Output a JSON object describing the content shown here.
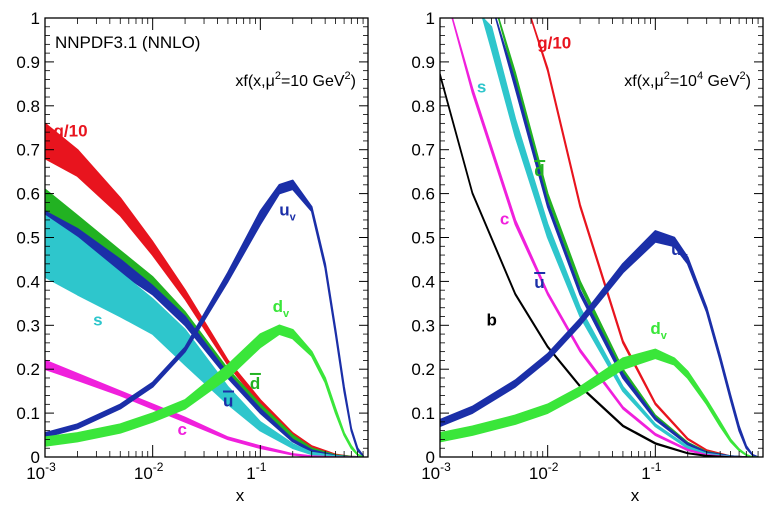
{
  "chart_data": [
    {
      "type": "line",
      "title": "NNPDF3.1 (NNLO)",
      "annotation": {
        "prefix": "xf(x,μ",
        "sup1": "2",
        "mid": "=10 GeV",
        "sup2": "2",
        "suffix": ")"
      },
      "xlabel": "x",
      "ylabel": "",
      "xscale": "log",
      "xlim": [
        0.001,
        1
      ],
      "ylim": [
        0,
        1
      ],
      "xticks": [
        "10",
        "10",
        "1"
      ],
      "xtick_exps": [
        "-3",
        "-2",
        "-1"
      ],
      "yticks": [
        "0",
        "0.1",
        "0.2",
        "0.3",
        "0.4",
        "0.5",
        "0.6",
        "0.7",
        "0.8",
        "0.9",
        "1"
      ],
      "series": [
        {
          "name": "g/10",
          "sub": "",
          "bar": false,
          "color": "#e8141e",
          "x": [
            0.001,
            0.002,
            0.005,
            0.01,
            0.02,
            0.05,
            0.1,
            0.2,
            0.3,
            0.5,
            0.7,
            0.9
          ],
          "lo": [
            0.68,
            0.64,
            0.55,
            0.46,
            0.36,
            0.21,
            0.12,
            0.05,
            0.02,
            0.004,
            0.001,
            0.0
          ],
          "hi": [
            0.76,
            0.7,
            0.59,
            0.49,
            0.38,
            0.22,
            0.13,
            0.055,
            0.025,
            0.006,
            0.001,
            0.0
          ],
          "label": {
            "x": 0.0012,
            "y": 0.73
          }
        },
        {
          "name": "d",
          "sub": "",
          "bar": true,
          "color": "#22b222",
          "x": [
            0.001,
            0.002,
            0.005,
            0.01,
            0.02,
            0.05,
            0.1,
            0.2,
            0.3,
            0.5,
            0.7,
            0.9
          ],
          "lo": [
            0.55,
            0.5,
            0.44,
            0.38,
            0.31,
            0.19,
            0.11,
            0.04,
            0.015,
            0.003,
            0.001,
            0.0
          ],
          "hi": [
            0.61,
            0.55,
            0.47,
            0.41,
            0.33,
            0.2,
            0.12,
            0.05,
            0.02,
            0.004,
            0.001,
            0.0
          ],
          "label": {
            "x": 0.08,
            "y": 0.155
          }
        },
        {
          "name": "u",
          "sub": "",
          "bar": true,
          "color": "#1b2fa8",
          "x": [
            0.001,
            0.002,
            0.005,
            0.01,
            0.02,
            0.05,
            0.1,
            0.2,
            0.3,
            0.5,
            0.7,
            0.9
          ],
          "lo": [
            0.51,
            0.48,
            0.42,
            0.37,
            0.3,
            0.18,
            0.1,
            0.035,
            0.012,
            0.002,
            0.0,
            0.0
          ],
          "hi": [
            0.56,
            0.52,
            0.45,
            0.39,
            0.32,
            0.19,
            0.11,
            0.04,
            0.016,
            0.003,
            0.0,
            0.0
          ],
          "label": {
            "x": 0.045,
            "y": 0.115
          }
        },
        {
          "name": "s",
          "sub": "",
          "bar": false,
          "color": "#2ec6cc",
          "x": [
            0.001,
            0.002,
            0.005,
            0.01,
            0.02,
            0.05,
            0.1,
            0.2,
            0.3,
            0.5,
            0.7,
            0.9
          ],
          "lo": [
            0.41,
            0.37,
            0.32,
            0.28,
            0.21,
            0.12,
            0.06,
            0.02,
            0.006,
            0.001,
            0.0,
            0.0
          ],
          "hi": [
            0.55,
            0.5,
            0.42,
            0.36,
            0.29,
            0.16,
            0.08,
            0.03,
            0.01,
            0.002,
            0.0,
            0.0
          ],
          "label": {
            "x": 0.0028,
            "y": 0.3
          }
        },
        {
          "name": "c",
          "sub": "",
          "bar": false,
          "color": "#f020dc",
          "x": [
            0.001,
            0.002,
            0.005,
            0.01,
            0.02,
            0.05,
            0.1,
            0.2,
            0.3,
            0.5,
            0.7,
            0.9
          ],
          "lo": [
            0.2,
            0.175,
            0.14,
            0.11,
            0.08,
            0.04,
            0.02,
            0.005,
            0.001,
            0.0,
            0.0,
            0.0
          ],
          "hi": [
            0.22,
            0.19,
            0.15,
            0.12,
            0.09,
            0.045,
            0.025,
            0.007,
            0.002,
            0.0,
            0.0,
            0.0
          ],
          "label": {
            "x": 0.017,
            "y": 0.05
          }
        },
        {
          "name": "u",
          "sub": "v",
          "bar": false,
          "color": "#1b2fa8",
          "x": [
            0.001,
            0.002,
            0.005,
            0.01,
            0.02,
            0.05,
            0.1,
            0.15,
            0.2,
            0.3,
            0.4,
            0.5,
            0.6,
            0.7,
            0.8,
            0.9
          ],
          "lo": [
            0.045,
            0.065,
            0.11,
            0.16,
            0.24,
            0.4,
            0.53,
            0.6,
            0.61,
            0.56,
            0.43,
            0.28,
            0.15,
            0.06,
            0.015,
            0.002
          ],
          "hi": [
            0.055,
            0.075,
            0.12,
            0.17,
            0.25,
            0.42,
            0.56,
            0.62,
            0.63,
            0.57,
            0.44,
            0.29,
            0.16,
            0.065,
            0.02,
            0.003
          ],
          "label": {
            "x": 0.15,
            "y": 0.55
          }
        },
        {
          "name": "d",
          "sub": "v",
          "bar": false,
          "color": "#3ae63a",
          "x": [
            0.001,
            0.002,
            0.005,
            0.01,
            0.02,
            0.05,
            0.1,
            0.15,
            0.2,
            0.3,
            0.4,
            0.5,
            0.6,
            0.7,
            0.8,
            0.9
          ],
          "lo": [
            0.025,
            0.035,
            0.055,
            0.08,
            0.11,
            0.18,
            0.25,
            0.28,
            0.27,
            0.23,
            0.17,
            0.1,
            0.05,
            0.02,
            0.005,
            0.0
          ],
          "hi": [
            0.045,
            0.055,
            0.075,
            0.1,
            0.13,
            0.21,
            0.28,
            0.3,
            0.29,
            0.24,
            0.18,
            0.11,
            0.055,
            0.025,
            0.006,
            0.0
          ],
          "label": {
            "x": 0.13,
            "y": 0.33
          }
        }
      ]
    },
    {
      "type": "line",
      "title": "",
      "annotation": {
        "prefix": "xf(x,μ",
        "sup1": "2",
        "mid": "=10",
        "sup2": "4",
        "suffix": " GeV",
        "sup3": "2",
        "suffix2": ")"
      },
      "xlabel": "x",
      "ylabel": "",
      "xscale": "log",
      "xlim": [
        0.001,
        1
      ],
      "ylim": [
        0,
        1
      ],
      "xticks": [
        "10",
        "10",
        "1"
      ],
      "xtick_exps": [
        "-3",
        "-2",
        "-1"
      ],
      "yticks": [
        "0",
        "0.1",
        "0.2",
        "0.3",
        "0.4",
        "0.5",
        "0.6",
        "0.7",
        "0.8",
        "0.9",
        "1"
      ],
      "series": [
        {
          "name": "g/10",
          "sub": "",
          "bar": false,
          "color": "#e8141e",
          "x": [
            0.007,
            0.01,
            0.02,
            0.05,
            0.1,
            0.2,
            0.3,
            0.5,
            0.7,
            0.9
          ],
          "lo": [
            1.0,
            0.88,
            0.57,
            0.26,
            0.12,
            0.04,
            0.015,
            0.002,
            0.0,
            0.0
          ],
          "hi": [
            1.0,
            0.885,
            0.575,
            0.265,
            0.123,
            0.042,
            0.016,
            0.002,
            0.0,
            0.0
          ],
          "label": {
            "x": 0.008,
            "y": 0.93
          }
        },
        {
          "name": "d",
          "sub": "",
          "bar": true,
          "color": "#22b222",
          "x": [
            0.0035,
            0.005,
            0.01,
            0.02,
            0.05,
            0.1,
            0.2,
            0.3,
            0.5,
            0.7,
            0.9
          ],
          "lo": [
            1.0,
            0.86,
            0.59,
            0.39,
            0.19,
            0.09,
            0.03,
            0.01,
            0.002,
            0.0,
            0.0
          ],
          "hi": [
            1.0,
            0.875,
            0.6,
            0.4,
            0.2,
            0.095,
            0.033,
            0.012,
            0.002,
            0.0,
            0.0
          ],
          "label": {
            "x": 0.0075,
            "y": 0.64
          }
        },
        {
          "name": "u",
          "sub": "",
          "bar": true,
          "color": "#1b2fa8",
          "x": [
            0.0033,
            0.005,
            0.01,
            0.02,
            0.05,
            0.1,
            0.2,
            0.3,
            0.5,
            0.7,
            0.9
          ],
          "lo": [
            1.0,
            0.84,
            0.57,
            0.37,
            0.18,
            0.085,
            0.028,
            0.009,
            0.001,
            0.0,
            0.0
          ],
          "hi": [
            1.0,
            0.855,
            0.58,
            0.38,
            0.19,
            0.09,
            0.031,
            0.011,
            0.002,
            0.0,
            0.0
          ],
          "label": {
            "x": 0.0075,
            "y": 0.385
          }
        },
        {
          "name": "s",
          "sub": "",
          "bar": false,
          "color": "#2ec6cc",
          "x": [
            0.0025,
            0.003,
            0.005,
            0.01,
            0.02,
            0.05,
            0.1,
            0.2,
            0.3,
            0.5,
            0.7,
            0.9
          ],
          "lo": [
            1.0,
            0.93,
            0.73,
            0.5,
            0.32,
            0.15,
            0.07,
            0.02,
            0.006,
            0.001,
            0.0,
            0.0
          ],
          "hi": [
            1.0,
            0.98,
            0.77,
            0.53,
            0.34,
            0.16,
            0.075,
            0.024,
            0.008,
            0.001,
            0.0,
            0.0
          ],
          "label": {
            "x": 0.0022,
            "y": 0.83
          }
        },
        {
          "name": "c",
          "sub": "",
          "bar": false,
          "color": "#f020dc",
          "x": [
            0.0013,
            0.002,
            0.005,
            0.01,
            0.02,
            0.05,
            0.1,
            0.2,
            0.3,
            0.5,
            0.7,
            0.9
          ],
          "lo": [
            1.0,
            0.83,
            0.53,
            0.37,
            0.24,
            0.11,
            0.05,
            0.015,
            0.004,
            0.0,
            0.0,
            0.0
          ],
          "hi": [
            1.0,
            0.84,
            0.54,
            0.375,
            0.245,
            0.114,
            0.053,
            0.017,
            0.005,
            0.0,
            0.0,
            0.0
          ],
          "label": {
            "x": 0.0036,
            "y": 0.53
          }
        },
        {
          "name": "b",
          "sub": "",
          "bar": false,
          "color": "#000000",
          "x": [
            0.001,
            0.002,
            0.005,
            0.01,
            0.02,
            0.05,
            0.1,
            0.2,
            0.3,
            0.5,
            0.7,
            0.9
          ],
          "lo": [
            0.87,
            0.6,
            0.37,
            0.25,
            0.16,
            0.07,
            0.03,
            0.008,
            0.002,
            0.0,
            0.0,
            0.0
          ],
          "hi": [
            0.872,
            0.602,
            0.372,
            0.252,
            0.162,
            0.072,
            0.032,
            0.009,
            0.003,
            0.0,
            0.0,
            0.0
          ],
          "label": {
            "x": 0.0027,
            "y": 0.3
          }
        },
        {
          "name": "u",
          "sub": "v",
          "bar": false,
          "color": "#1b2fa8",
          "x": [
            0.001,
            0.002,
            0.005,
            0.01,
            0.02,
            0.05,
            0.1,
            0.15,
            0.2,
            0.3,
            0.4,
            0.5,
            0.6,
            0.7,
            0.8,
            0.9
          ],
          "lo": [
            0.07,
            0.1,
            0.16,
            0.22,
            0.3,
            0.42,
            0.49,
            0.48,
            0.44,
            0.33,
            0.22,
            0.13,
            0.06,
            0.02,
            0.004,
            0.0
          ],
          "hi": [
            0.085,
            0.115,
            0.175,
            0.235,
            0.315,
            0.44,
            0.515,
            0.5,
            0.455,
            0.34,
            0.23,
            0.14,
            0.07,
            0.025,
            0.005,
            0.0
          ],
          "label": {
            "x": 0.14,
            "y": 0.46
          }
        },
        {
          "name": "d",
          "sub": "v",
          "bar": false,
          "color": "#3ae63a",
          "x": [
            0.001,
            0.002,
            0.005,
            0.01,
            0.02,
            0.05,
            0.1,
            0.15,
            0.2,
            0.3,
            0.4,
            0.5,
            0.6,
            0.7,
            0.8,
            0.9
          ],
          "lo": [
            0.035,
            0.05,
            0.075,
            0.1,
            0.14,
            0.2,
            0.225,
            0.21,
            0.18,
            0.12,
            0.07,
            0.035,
            0.015,
            0.004,
            0.0,
            0.0
          ],
          "hi": [
            0.055,
            0.07,
            0.095,
            0.12,
            0.16,
            0.225,
            0.245,
            0.225,
            0.195,
            0.13,
            0.08,
            0.04,
            0.018,
            0.005,
            0.0,
            0.0
          ],
          "label": {
            "x": 0.09,
            "y": 0.28
          }
        }
      ]
    }
  ]
}
